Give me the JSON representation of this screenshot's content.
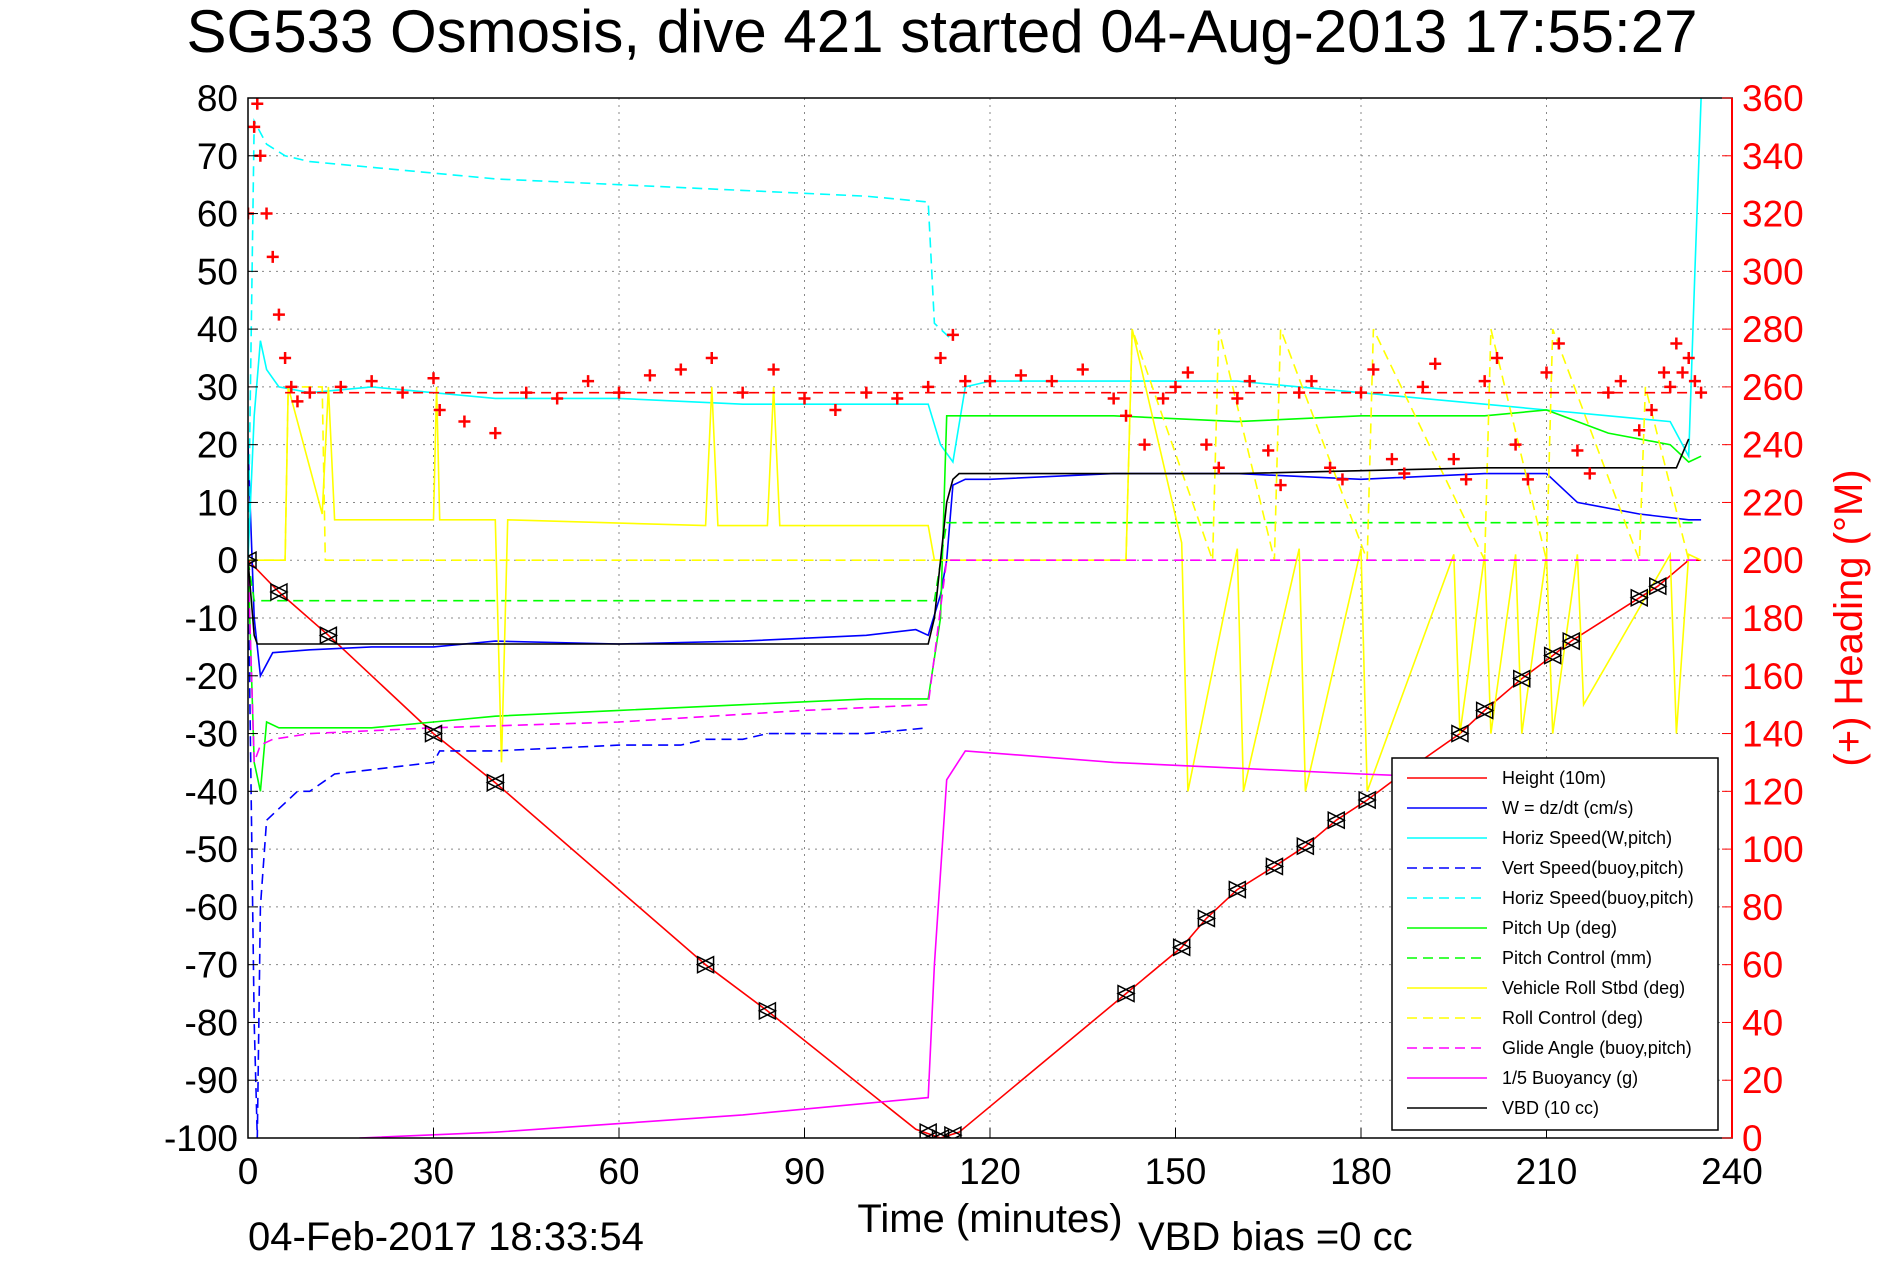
{
  "chart_data": {
    "type": "line",
    "title": "SG533 Osmosis, dive 421 started 04-Aug-2013 17:55:27",
    "xlabel": "Time (minutes)",
    "ylabel": "",
    "y2label": "(+) Heading (°M)",
    "xlim": [
      0,
      240
    ],
    "ylim": [
      -100,
      80
    ],
    "y2lim": [
      0,
      360
    ],
    "xticks": [
      0,
      30,
      60,
      90,
      120,
      150,
      180,
      210,
      240
    ],
    "yticks": [
      -100,
      -90,
      -80,
      -70,
      -60,
      -50,
      -40,
      -30,
      -20,
      -10,
      0,
      10,
      20,
      30,
      40,
      50,
      60,
      70,
      80
    ],
    "y2ticks": [
      0,
      20,
      40,
      60,
      80,
      100,
      120,
      140,
      160,
      180,
      200,
      220,
      240,
      260,
      280,
      300,
      320,
      340,
      360
    ],
    "grid": true,
    "legend_position": "bottom-right",
    "footer_timestamp": "04-Feb-2017 18:33:54",
    "footer_note": "VBD bias =0 cc",
    "series": [
      {
        "name": "Height (10m)",
        "color": "#ff0000",
        "style": "solid",
        "axis": "left",
        "x": [
          0,
          5,
          13,
          30,
          40,
          74,
          84,
          108,
          112,
          115,
          142,
          151,
          155,
          160,
          166,
          171,
          176,
          181,
          186,
          196,
          200,
          206,
          211,
          214,
          225,
          228,
          233,
          235
        ],
        "y": [
          0,
          -5.5,
          -13,
          -30,
          -38.5,
          -70,
          -78,
          -98.5,
          -100,
          -99,
          -75,
          -67,
          -62,
          -57,
          -53,
          -49.5,
          -45,
          -41.5,
          -37.5,
          -30,
          -26,
          -20.5,
          -16.5,
          -14,
          -6.5,
          -4.5,
          0,
          0
        ]
      },
      {
        "name": "W = dz/dt (cm/s)",
        "color": "#0000ff",
        "style": "solid",
        "axis": "left",
        "x": [
          0,
          1,
          2,
          4,
          10,
          20,
          30,
          40,
          60,
          80,
          100,
          108,
          110,
          112,
          113,
          114,
          116,
          120,
          140,
          160,
          180,
          200,
          210,
          215,
          225,
          233,
          235
        ],
        "y": [
          20,
          -10,
          -20,
          -16,
          -15.5,
          -15,
          -15,
          -14,
          -14.5,
          -14,
          -13,
          -12,
          -13,
          -6,
          0,
          13,
          14,
          14,
          15,
          15,
          14,
          15,
          15,
          10,
          8,
          7,
          7
        ]
      },
      {
        "name": "Horiz Speed(W,pitch)",
        "color": "#00ffff",
        "style": "solid",
        "axis": "left",
        "x": [
          0,
          1,
          2,
          3,
          5,
          10,
          20,
          30,
          40,
          60,
          80,
          100,
          110,
          112,
          114,
          116,
          120,
          140,
          160,
          180,
          200,
          210,
          220,
          230,
          233,
          234,
          235
        ],
        "y": [
          0,
          25,
          38,
          33,
          30,
          29,
          30,
          29,
          28,
          28,
          27,
          27,
          27,
          20,
          17,
          30,
          31,
          31,
          31,
          29,
          27,
          26,
          25,
          24,
          18,
          50,
          80
        ]
      },
      {
        "name": "Vert Speed(buoy,pitch)",
        "color": "#0000ff",
        "style": "dashed",
        "axis": "left",
        "x": [
          0,
          1,
          1.5,
          2,
          3,
          6,
          8,
          10,
          14,
          30,
          31,
          40,
          60,
          70,
          74,
          80,
          84,
          100,
          110
        ],
        "y": [
          0,
          -80,
          -100,
          -60,
          -45,
          -42,
          -40,
          -40,
          -37,
          -35,
          -33,
          -33,
          -32,
          -32,
          -31,
          -31,
          -30,
          -30,
          -29
        ]
      },
      {
        "name": "Horiz Speed(buoy,pitch)",
        "color": "#00ffff",
        "style": "dashed",
        "axis": "left",
        "x": [
          0,
          1,
          3,
          6,
          10,
          20,
          30,
          40,
          60,
          80,
          100,
          110,
          111,
          112,
          114
        ],
        "y": [
          0,
          76,
          72,
          70,
          69,
          68,
          67,
          66,
          65,
          64,
          63,
          62,
          41,
          40,
          38
        ]
      },
      {
        "name": "Pitch Up (deg)",
        "color": "#00ff00",
        "style": "solid",
        "axis": "left",
        "x": [
          0,
          1,
          2,
          3,
          5,
          10,
          20,
          30,
          40,
          60,
          80,
          100,
          110,
          112,
          113,
          114,
          120,
          140,
          160,
          180,
          200,
          210,
          220,
          230,
          233,
          235
        ],
        "y": [
          0,
          -35,
          -40,
          -28,
          -29,
          -29,
          -29,
          -28,
          -27,
          -26,
          -25,
          -24,
          -24,
          -10,
          25,
          25,
          25,
          25,
          24,
          25,
          25,
          26,
          22,
          20,
          17,
          18
        ]
      },
      {
        "name": "Pitch Control (mm)",
        "color": "#00ff00",
        "style": "dashed",
        "axis": "left",
        "x": [
          0,
          1,
          2,
          110,
          111,
          113,
          233,
          234
        ],
        "y": [
          0,
          -7,
          -7,
          -7,
          -7,
          6.5,
          6.5,
          6.5
        ]
      },
      {
        "name": "Vehicle Roll Stbd (deg)",
        "color": "#ffff00",
        "style": "solid",
        "axis": "left",
        "x": [
          0,
          6,
          6.5,
          12,
          13,
          14,
          15,
          30,
          30.5,
          31,
          40,
          41,
          42,
          74,
          75,
          76,
          84,
          85,
          86,
          110,
          111,
          113,
          120,
          142,
          143,
          151,
          152,
          160,
          161,
          170,
          171,
          180,
          181,
          195,
          196,
          200,
          201,
          205,
          206,
          210,
          211,
          215,
          216,
          230,
          231,
          233,
          235
        ],
        "y": [
          0,
          0,
          30,
          8,
          30,
          7,
          7,
          7,
          30,
          7,
          7,
          -35,
          7,
          6,
          30,
          6,
          6,
          30,
          6,
          6,
          0,
          0,
          0,
          0,
          40,
          3,
          -40,
          2,
          -40,
          2,
          -40,
          2,
          -40,
          1,
          -30,
          1,
          -30,
          1,
          -30,
          1,
          -30,
          1,
          -25,
          1,
          -30,
          1,
          0
        ]
      },
      {
        "name": "Roll Control (deg)",
        "color": "#ffff00",
        "style": "dashed",
        "axis": "left",
        "x": [
          0,
          6,
          6.5,
          12,
          12.5,
          110,
          111,
          113,
          142,
          143,
          156,
          157,
          166,
          167,
          181,
          182,
          200,
          201,
          210,
          211,
          225,
          226,
          233
        ],
        "y": [
          0,
          0,
          30,
          30,
          0,
          0,
          0,
          0,
          0,
          40,
          0,
          40,
          0,
          40,
          0,
          40,
          0,
          40,
          0,
          40,
          0,
          30,
          0
        ]
      },
      {
        "name": "Glide Angle (buoy,pitch)",
        "color": "#ff00ff",
        "style": "dashed",
        "axis": "left",
        "x": [
          0,
          1,
          2,
          4,
          10,
          30,
          60,
          90,
          110,
          113,
          235
        ],
        "y": [
          0,
          -35,
          -32,
          -31,
          -30,
          -29,
          -28,
          -26,
          -25,
          0,
          0
        ]
      },
      {
        "name": "1/5 Buoyancy (g)",
        "color": "#ff00ff",
        "style": "solid",
        "axis": "left",
        "x": [
          18,
          40,
          60,
          80,
          100,
          110,
          111,
          113,
          116,
          140,
          160,
          180,
          192
        ],
        "y": [
          -100,
          -99,
          -97.5,
          -96,
          -94,
          -93,
          -70,
          -38,
          -33,
          -35,
          -36,
          -37,
          -37.5
        ]
      },
      {
        "name": "VBD (10 cc)",
        "color": "#000000",
        "style": "solid",
        "axis": "left",
        "x": [
          0,
          1,
          1.5,
          110,
          111,
          113,
          114,
          115,
          160,
          200,
          230,
          231,
          233
        ],
        "y": [
          0,
          -13,
          -14.5,
          -14.5,
          -10,
          10,
          14,
          15,
          15,
          16,
          16,
          16,
          21
        ]
      },
      {
        "name": "",
        "color": "#ff0000",
        "style": "dashed",
        "axis": "right",
        "x": [
          6,
          233
        ],
        "y": [
          258,
          258
        ]
      },
      {
        "name": "",
        "color": "#ff0000",
        "style": "markers",
        "axis": "right",
        "x": [
          0,
          1,
          1.5,
          2,
          3,
          4,
          5,
          6,
          7,
          8,
          10,
          15,
          20,
          25,
          30,
          31,
          35,
          40,
          45,
          50,
          55,
          60,
          65,
          70,
          75,
          80,
          85,
          90,
          95,
          100,
          105,
          110,
          112,
          114,
          116,
          120,
          125,
          130,
          135,
          140,
          142,
          145,
          148,
          150,
          152,
          155,
          157,
          160,
          162,
          165,
          167,
          170,
          172,
          175,
          177,
          180,
          182,
          185,
          187,
          190,
          192,
          195,
          197,
          200,
          202,
          205,
          207,
          210,
          212,
          215,
          217,
          220,
          222,
          225,
          227,
          229,
          230,
          231,
          232,
          233,
          234,
          235
        ],
        "y": [
          320,
          350,
          358,
          340,
          320,
          305,
          285,
          270,
          260,
          255,
          258,
          260,
          262,
          258,
          263,
          252,
          248,
          244,
          258,
          256,
          262,
          258,
          264,
          266,
          270,
          258,
          266,
          256,
          252,
          258,
          256,
          260,
          270,
          278,
          262,
          262,
          264,
          262,
          266,
          256,
          250,
          240,
          256,
          260,
          265,
          240,
          232,
          256,
          262,
          238,
          226,
          258,
          262,
          232,
          228,
          258,
          266,
          235,
          230,
          260,
          268,
          235,
          228,
          262,
          270,
          240,
          228,
          265,
          275,
          238,
          230,
          258,
          262,
          245,
          252,
          265,
          260,
          275,
          265,
          270,
          262,
          258
        ]
      }
    ],
    "dive_markers": {
      "x": [
        0,
        5,
        13,
        30,
        40,
        74,
        84,
        110,
        112,
        114,
        142,
        151,
        155,
        160,
        166,
        171,
        176,
        181,
        196,
        200,
        206,
        211,
        214,
        225,
        228
      ],
      "y": [
        0,
        -5.5,
        -13,
        -30,
        -38.5,
        -70,
        -78,
        -99,
        -100,
        -99.5,
        -75,
        -67,
        -62,
        -57,
        -53,
        -49.5,
        -45,
        -41.5,
        -30,
        -26,
        -20.5,
        -16.5,
        -14,
        -6.5,
        -4.5
      ]
    }
  }
}
